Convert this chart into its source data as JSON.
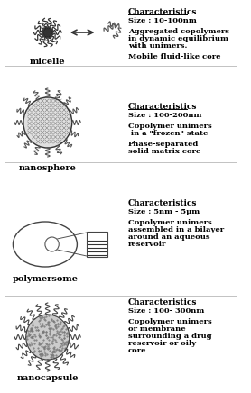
{
  "background_color": "#ffffff",
  "sections": [
    {
      "label": "micelle",
      "char_title": "Characteristics",
      "lines": [
        "Size : 10-100nm",
        "",
        "Aggregated copolymers",
        "in dynamic equilibrium",
        "with unimers.",
        "",
        "Mobile fluid-like core"
      ]
    },
    {
      "label": "nanosphere",
      "char_title": "Characteristics",
      "lines": [
        "Size : 100-200nm",
        "",
        "Copolymer unimers",
        " in a \"frozen\" state",
        "",
        "Phase-separated",
        "solid matrix core"
      ]
    },
    {
      "label": "polymersome",
      "char_title": "Characteristics",
      "lines": [
        "Size : 5nm - 5μm",
        "",
        "Copolymer unimers",
        "assembled in a bilayer",
        "around an aqueous",
        "reservoir"
      ]
    },
    {
      "label": "nanocapsule",
      "char_title": "Characteristics",
      "lines": [
        "Size : 100- 300nm",
        "",
        "Copolymer unimers",
        "or membrane",
        "surrounding a drug",
        "reservoir or oily",
        "core"
      ]
    }
  ]
}
